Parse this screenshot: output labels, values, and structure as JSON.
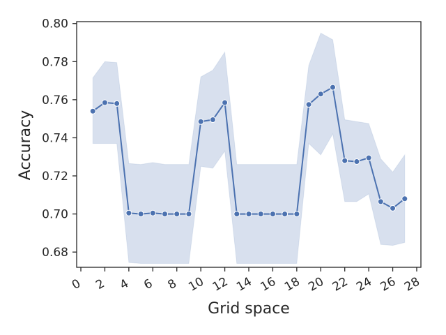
{
  "chart_data": {
    "type": "line",
    "title": "",
    "xlabel": "Grid space",
    "ylabel": "Accuracy",
    "xlim": [
      -0.35,
      28.35
    ],
    "ylim": [
      0.672,
      0.801
    ],
    "x_ticks": [
      0,
      2,
      4,
      6,
      8,
      10,
      12,
      14,
      16,
      18,
      20,
      22,
      24,
      26,
      28
    ],
    "x_tick_labels": [
      "0",
      "2",
      "4",
      "6",
      "8",
      "10",
      "12",
      "14",
      "16",
      "18",
      "20",
      "22",
      "24",
      "26",
      "28"
    ],
    "y_ticks": [
      0.68,
      0.7,
      0.72,
      0.74,
      0.76,
      0.78,
      0.8
    ],
    "y_tick_labels": [
      "0.68",
      "0.70",
      "0.72",
      "0.74",
      "0.76",
      "0.78",
      "0.80"
    ],
    "grid": false,
    "legend": "none",
    "colors": {
      "line": "#4c72b0",
      "band": "#4c72b0",
      "axis": "#262626",
      "marker_edge": "#ffffff"
    },
    "series": [
      {
        "x": [
          1,
          2,
          3,
          4,
          5,
          6,
          7,
          8,
          9,
          10,
          11,
          12,
          13,
          14,
          15,
          16,
          17,
          18,
          19,
          20,
          21,
          22,
          23,
          24,
          25,
          26,
          27
        ],
        "y": [
          0.754,
          0.7585,
          0.758,
          0.7005,
          0.7,
          0.7005,
          0.7,
          0.7,
          0.7,
          0.7485,
          0.7495,
          0.7585,
          0.7,
          0.7,
          0.7,
          0.7,
          0.7,
          0.7,
          0.7575,
          0.763,
          0.7665,
          0.728,
          0.7275,
          0.7295,
          0.7065,
          0.703,
          0.708
        ],
        "ci_lower": [
          0.737,
          0.737,
          0.737,
          0.6745,
          0.674,
          0.674,
          0.674,
          0.674,
          0.674,
          0.725,
          0.724,
          0.733,
          0.674,
          0.674,
          0.674,
          0.674,
          0.674,
          0.674,
          0.737,
          0.731,
          0.742,
          0.7065,
          0.7065,
          0.7105,
          0.684,
          0.6835,
          0.685
        ],
        "ci_upper": [
          0.7715,
          0.78,
          0.7795,
          0.7265,
          0.726,
          0.727,
          0.726,
          0.726,
          0.726,
          0.772,
          0.7755,
          0.785,
          0.726,
          0.726,
          0.726,
          0.726,
          0.726,
          0.726,
          0.778,
          0.795,
          0.7915,
          0.7495,
          0.7485,
          0.7475,
          0.729,
          0.722,
          0.731
        ]
      }
    ]
  }
}
